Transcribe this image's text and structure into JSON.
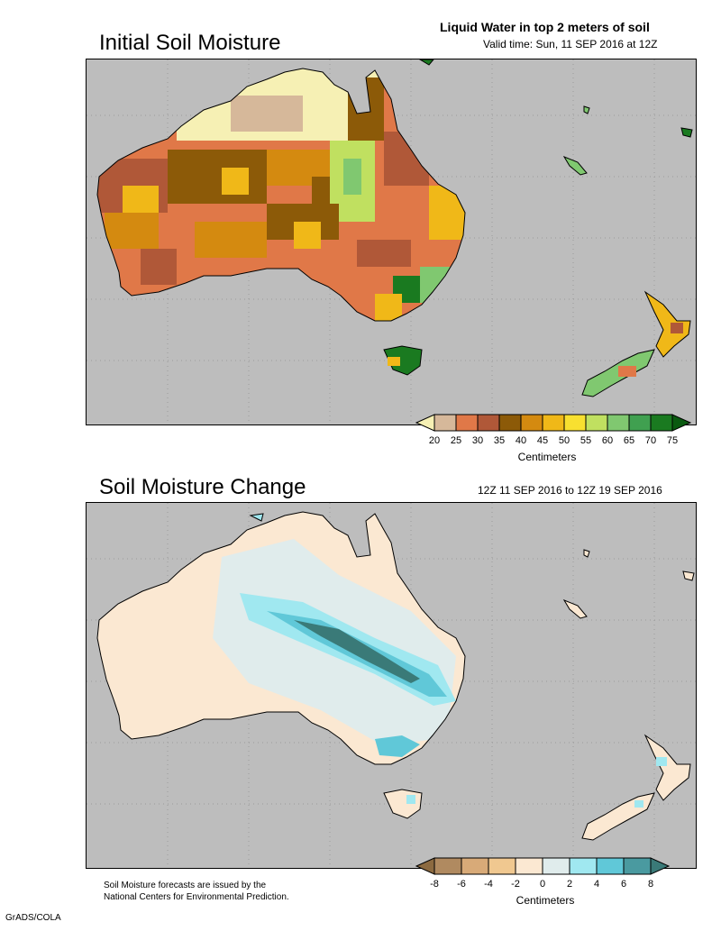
{
  "panel1": {
    "title": "Initial Soil Moisture",
    "header_right_bold": "Liquid Water in top 2 meters of soil",
    "header_right_sub": "Valid time: Sun, 11 SEP 2016 at 12Z",
    "colorbar": {
      "ticks": [
        "20",
        "25",
        "30",
        "35",
        "40",
        "45",
        "50",
        "55",
        "60",
        "65",
        "70",
        "75"
      ],
      "colors": [
        "#f6f0b4",
        "#d6b89a",
        "#e07848",
        "#b05838",
        "#8c5a08",
        "#d48a10",
        "#f0b818",
        "#f8e030",
        "#c0e060",
        "#80c870",
        "#40a050",
        "#1a7a20",
        "#0a5a10"
      ],
      "label": "Centimeters"
    }
  },
  "panel2": {
    "title": "Soil Moisture Change",
    "header_right_sub": "12Z 11 SEP 2016 to 12Z 19 SEP 2016",
    "colorbar": {
      "ticks": [
        "-8",
        "-6",
        "-4",
        "-2",
        "0",
        "2",
        "4",
        "6",
        "8"
      ],
      "colors": [
        "#8c6a40",
        "#b08a60",
        "#d8aa78",
        "#f0c890",
        "#fbe8d2",
        "#e0ecec",
        "#a0e8f0",
        "#60c8d8",
        "#4a9aa0",
        "#3a7a78"
      ],
      "label": "Centimeters"
    }
  },
  "footer": {
    "line1": "Soil Moisture forecasts are issued by the",
    "line2": "National Centers for Environmental Prediction.",
    "credit": "GrADS/COLA"
  },
  "colors": {
    "ocean": "#bdbdbd",
    "grid": "#9a9a9a"
  }
}
